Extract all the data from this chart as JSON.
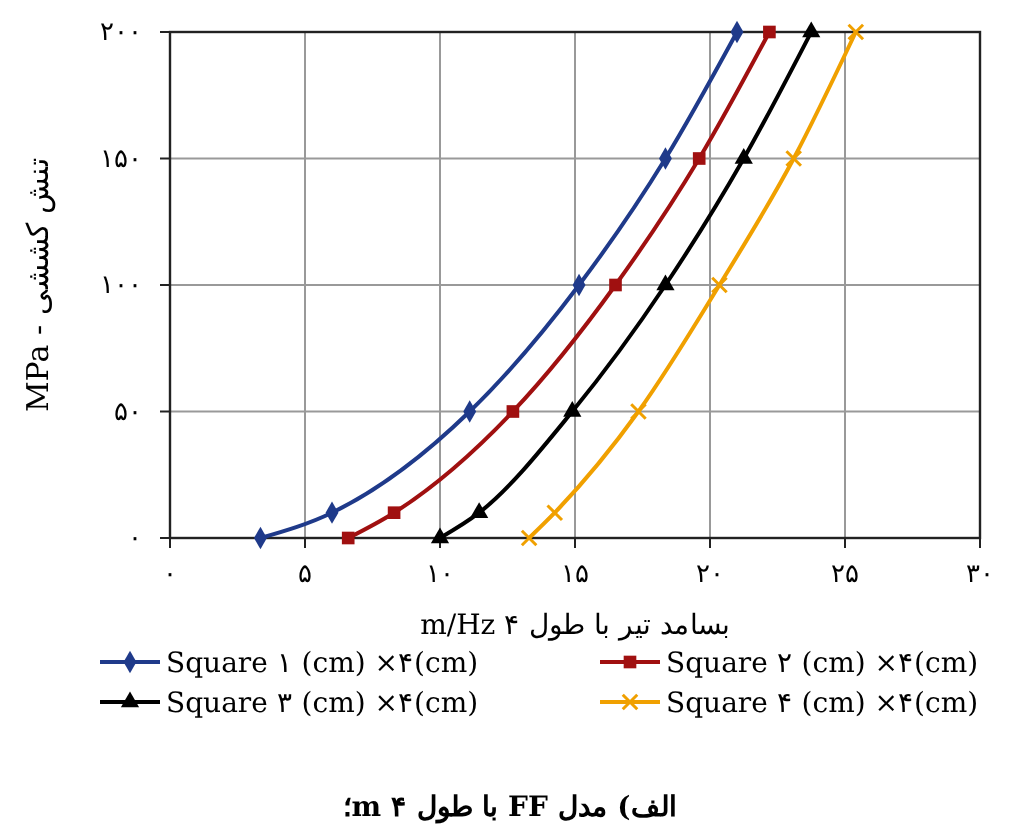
{
  "chart_data": {
    "type": "line",
    "xlabel": "بسامد تیر با طول m/Hz ۴",
    "ylabel": "MPa - تنش کششی",
    "annotations": [
      "الف) مدل FF با طول ۴ m؛"
    ],
    "xlim": [
      0,
      30
    ],
    "xticks": [
      {
        "value": 0,
        "label": "۰"
      },
      {
        "value": 5,
        "label": "۵"
      },
      {
        "value": 10,
        "label": "۱۰"
      },
      {
        "value": 15,
        "label": "۱۵"
      },
      {
        "value": 20,
        "label": "۲۰"
      },
      {
        "value": 25,
        "label": "۲۵"
      },
      {
        "value": 30,
        "label": "۳۰"
      }
    ],
    "ylim": [
      0,
      200
    ],
    "yticks": [
      {
        "value": 0,
        "label": "۰"
      },
      {
        "value": 50,
        "label": "۵۰"
      },
      {
        "value": 100,
        "label": "۱۰۰"
      },
      {
        "value": 150,
        "label": "۱۵۰"
      },
      {
        "value": 200,
        "label": "۲۰۰"
      }
    ],
    "grid": true,
    "legend": "bottom",
    "line_style": "solid",
    "series": [
      {
        "name": "Square ۱ (cm) ×۴(cm)",
        "color": "#1f3a8a",
        "marker": "diamond",
        "x": [
          3.35,
          6.0,
          11.1,
          15.15,
          18.35,
          21.0
        ],
        "values": [
          0,
          10,
          50,
          100,
          150,
          200
        ]
      },
      {
        "name": "Square ۲ (cm) ×۴(cm)",
        "color": "#a01010",
        "marker": "square",
        "x": [
          6.6,
          8.3,
          12.7,
          16.5,
          19.6,
          22.2
        ],
        "values": [
          0,
          10,
          50,
          100,
          150,
          200
        ]
      },
      {
        "name": "Square ۳ (cm) ×۴(cm)",
        "color": "#000000",
        "marker": "triangle",
        "x": [
          10.0,
          11.45,
          14.9,
          18.35,
          21.25,
          23.75
        ],
        "values": [
          0,
          10,
          50,
          100,
          150,
          200
        ]
      },
      {
        "name": "Square ۴ (cm) ×۴(cm)",
        "color": "#f0a000",
        "marker": "cross",
        "x": [
          13.3,
          14.25,
          17.35,
          20.35,
          23.1,
          25.4
        ],
        "values": [
          0,
          10,
          50,
          100,
          150,
          200
        ]
      }
    ]
  }
}
